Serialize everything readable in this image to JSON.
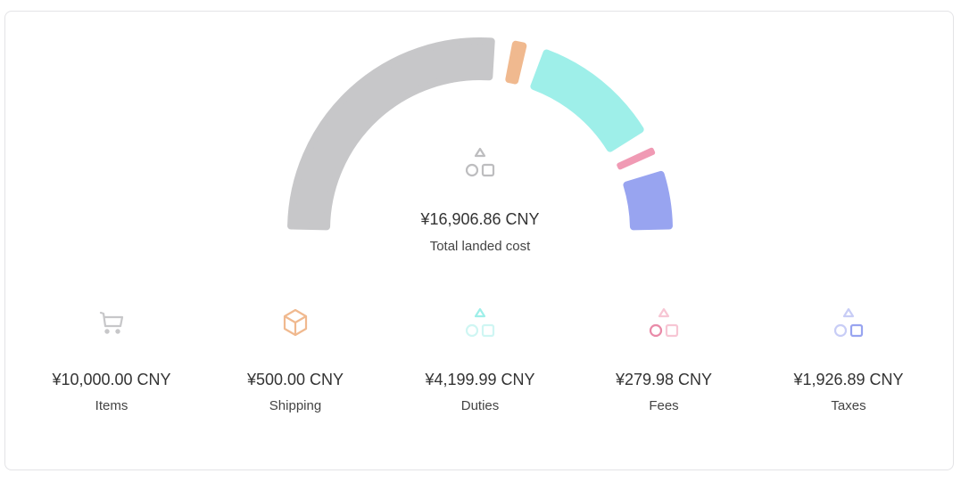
{
  "chart_data": {
    "type": "gauge-donut",
    "total": {
      "amount": "¥16,906.86 CNY",
      "label": "Total landed cost",
      "value": 16906.86
    },
    "series": [
      {
        "name": "Items",
        "value": 10000.0,
        "amount": "¥10,000.00 CNY",
        "color": "#c7c7c9",
        "icon": "cart-icon"
      },
      {
        "name": "Shipping",
        "value": 500.0,
        "amount": "¥500.00 CNY",
        "color": "#f0b98f",
        "icon": "box-icon"
      },
      {
        "name": "Duties",
        "value": 4199.99,
        "amount": "¥4,199.99 CNY",
        "color": "#9eefe9",
        "icon": "shapes-icon"
      },
      {
        "name": "Fees",
        "value": 279.98,
        "amount": "¥279.98 CNY",
        "color": "#f09ab4",
        "icon": "shapes-icon"
      },
      {
        "name": "Taxes",
        "value": 1926.89,
        "amount": "¥1,926.89 CNY",
        "color": "#98a4f0",
        "icon": "shapes-icon"
      }
    ]
  }
}
